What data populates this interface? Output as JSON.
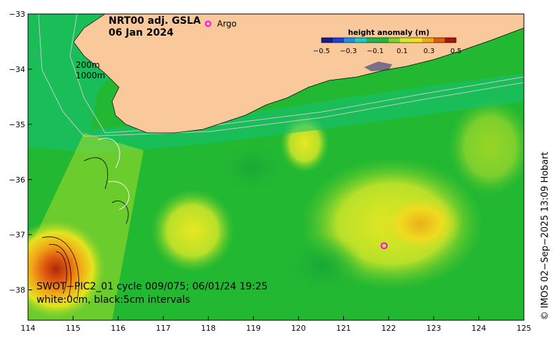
{
  "title": {
    "line1": "NRT00 adj. GSLA",
    "line2": "06 Jan 2024"
  },
  "legend": {
    "marker_symbol": "o",
    "marker_label": "Argo",
    "marker_color": "#ff00ff"
  },
  "colorbar": {
    "title": "height anomaly (m)",
    "ticks": [
      "−0.5",
      "−0.3",
      "−0.1",
      "0.1",
      "0.3",
      "0.5"
    ],
    "colors": [
      "#1a1a8c",
      "#1f3fd0",
      "#1f8fe0",
      "#20c8c0",
      "#21b35a",
      "#22b832",
      "#7fd02a",
      "#d8e82a",
      "#f4e020",
      "#f2a818",
      "#e05a10",
      "#a81808"
    ]
  },
  "contours": {
    "shallow": "200m",
    "deep": "1000m"
  },
  "swot": {
    "line1": "SWOT−PIC2_01 cycle 009/075; 06/01/24 19:25",
    "line2": "white:0cm, black:5cm intervals"
  },
  "credit": "© IMOS 02−Sep−2025 13:09 Hobart",
  "axes": {
    "x_ticks": [
      "114",
      "115",
      "116",
      "117",
      "118",
      "119",
      "120",
      "121",
      "122",
      "123",
      "124",
      "125"
    ],
    "y_ticks": [
      "−33",
      "−34",
      "−35",
      "−36",
      "−37",
      "−38"
    ]
  },
  "map_data": {
    "lon_range": [
      114,
      125
    ],
    "lat_range": [
      -38.55,
      -33
    ],
    "argo_float": {
      "lon": 121.9,
      "lat": -37.2
    },
    "colors": {
      "land": "#f9c89b",
      "ocean_base": "#22b832",
      "shelf": "#14c27a",
      "coast": "#000000",
      "argo": "#ff00ff"
    }
  }
}
